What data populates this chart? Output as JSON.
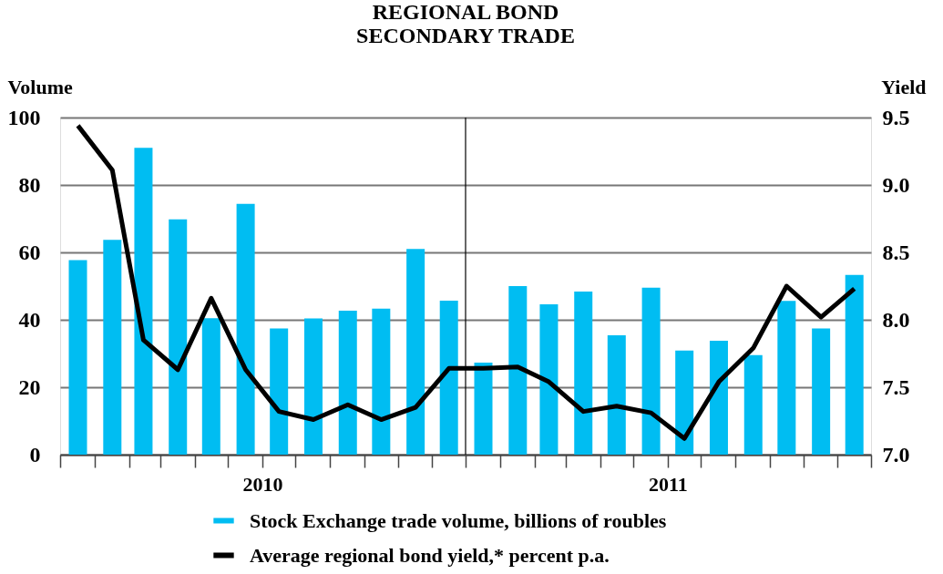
{
  "chart_data": {
    "type": "bar",
    "title": "REGIONAL BOND\nSECONDARY TRADE",
    "ylabel": "Volume",
    "y2label": "Yield",
    "x": [
      "2010-01",
      "2010-02",
      "2010-03",
      "2010-04",
      "2010-05",
      "2010-06",
      "2010-07",
      "2010-08",
      "2010-09",
      "2010-10",
      "2010-11",
      "2010-12",
      "2011-01",
      "2011-02",
      "2011-03",
      "2011-04",
      "2011-05",
      "2011-06",
      "2011-07",
      "2011-08",
      "2011-09",
      "2011-10",
      "2011-11",
      "2011-12"
    ],
    "xlim": [
      "2009-12-16",
      "2011-12-16"
    ],
    "xticks": [
      {
        "value": "2009-12-16",
        "label": null
      },
      {
        "value": "2010-01-16",
        "label": null
      },
      {
        "value": "2010-02-16",
        "label": null
      },
      {
        "value": "2010-03-16",
        "label": null
      },
      {
        "value": "2010-04-16",
        "label": null
      },
      {
        "value": "2010-05-16",
        "label": null
      },
      {
        "value": "2010-06-16",
        "label": "2010"
      },
      {
        "value": "2010-07-16",
        "label": null
      },
      {
        "value": "2010-08-16",
        "label": null
      },
      {
        "value": "2010-09-16",
        "label": null
      },
      {
        "value": "2010-10-16",
        "label": null
      },
      {
        "value": "2010-11-16",
        "label": null
      },
      {
        "value": "2010-12-16",
        "label": null
      },
      {
        "value": "2011-01-16",
        "label": null
      },
      {
        "value": "2011-02-16",
        "label": null
      },
      {
        "value": "2011-03-16",
        "label": null
      },
      {
        "value": "2011-04-16",
        "label": null
      },
      {
        "value": "2011-05-16",
        "label": null
      },
      {
        "value": "2011-06-16",
        "label": "2011"
      },
      {
        "value": "2011-07-16",
        "label": null
      },
      {
        "value": "2011-08-16",
        "label": null
      },
      {
        "value": "2011-09-16",
        "label": null
      },
      {
        "value": "2011-10-16",
        "label": null
      },
      {
        "value": "2011-11-16",
        "label": null
      },
      {
        "value": "2011-12-16",
        "label": null
      }
    ],
    "ylim": [
      0,
      100
    ],
    "yticks": [
      0,
      20,
      40,
      60,
      80,
      100
    ],
    "y2lim": [
      7.0,
      9.5
    ],
    "y2ticks": [
      {
        "value": 7.0,
        "label": "7.0"
      },
      {
        "value": 7.5,
        "label": "7.5"
      },
      {
        "value": 8.0,
        "label": "8.0"
      },
      {
        "value": 8.5,
        "label": "8.5"
      },
      {
        "value": 9.0,
        "label": "9.0"
      },
      {
        "value": 9.5,
        "label": "9.5"
      }
    ],
    "series": [
      {
        "name": "Stock Exchange trade volume, billions of roubles",
        "color": "#00bdf2",
        "values": [
          57.7,
          63.7,
          91.0,
          69.8,
          40.5,
          74.4,
          37.4,
          40.4,
          42.7,
          43.3,
          61.0,
          45.7,
          27.3,
          50.0,
          44.6,
          48.4,
          35.4,
          49.5,
          30.9,
          33.8,
          29.5,
          45.6,
          37.4,
          53.3
        ]
      },
      {
        "name": "Average regional bond yield,* percent p.a.",
        "type": "line",
        "axis": "y2",
        "color": "#000000",
        "values": [
          9.44,
          9.11,
          7.85,
          7.63,
          8.16,
          7.63,
          7.32,
          7.26,
          7.37,
          7.26,
          7.35,
          7.64,
          7.64,
          7.65,
          7.54,
          7.32,
          7.36,
          7.31,
          7.12,
          7.54,
          7.79,
          8.25,
          8.02,
          8.23
        ]
      }
    ],
    "ref_lines": [
      {
        "axis": "x",
        "value": "2010-12-16",
        "color": "#000000"
      }
    ],
    "grid": "y",
    "legend": "bottom"
  }
}
